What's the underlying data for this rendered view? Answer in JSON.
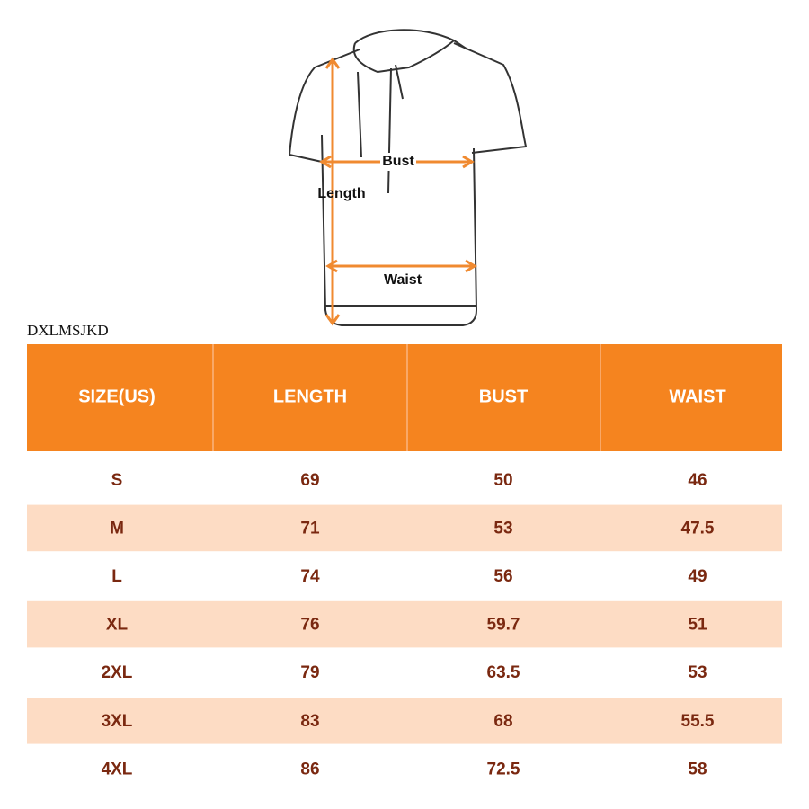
{
  "diagram": {
    "labels": {
      "bust": "Bust",
      "length": "Length",
      "waist": "Waist"
    }
  },
  "brand": "DXLMSJKD",
  "table": {
    "header": [
      "SIZE(US)",
      "LENGTH",
      "BUST",
      "WAIST"
    ],
    "rows": [
      [
        "S",
        69,
        50,
        46
      ],
      [
        "M",
        71,
        53,
        47.5
      ],
      [
        "L",
        74,
        56,
        49
      ],
      [
        "XL",
        76,
        59.7,
        51
      ],
      [
        "2XL",
        79,
        63.5,
        53
      ],
      [
        "3XL",
        83,
        68,
        55.5
      ],
      [
        "4XL",
        86,
        72.5,
        58
      ]
    ]
  }
}
